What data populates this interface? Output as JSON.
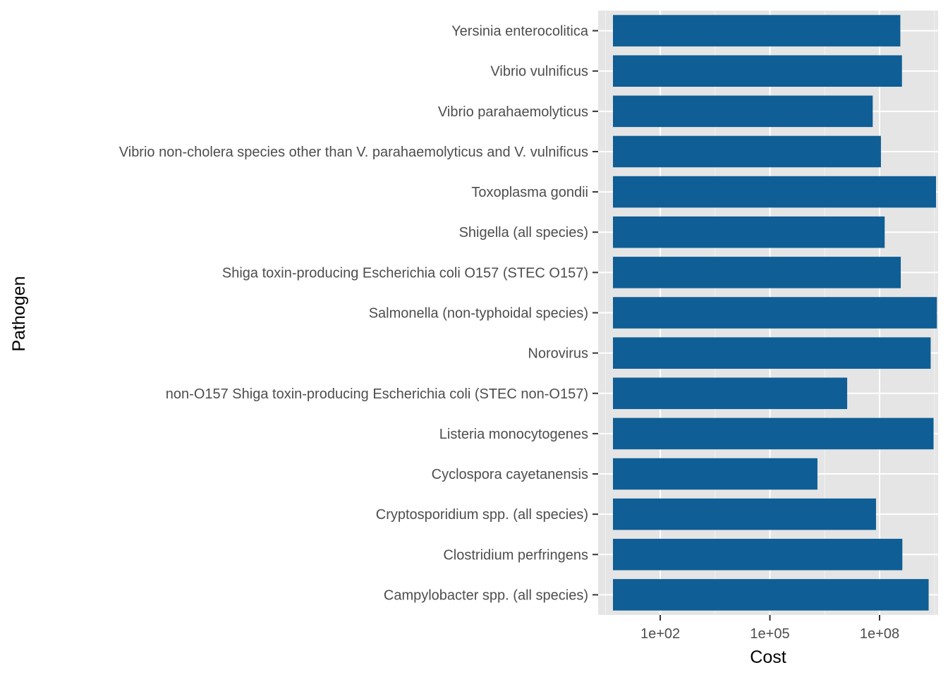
{
  "chart_data": {
    "type": "bar",
    "orientation": "horizontal",
    "xlabel": "Cost",
    "ylabel": "Pathogen",
    "x_scale": "log10",
    "xlim": [
      2,
      4000000000
    ],
    "x_ticks": [
      100,
      100000,
      100000000
    ],
    "x_tick_labels": [
      "1e+02",
      "1e+05",
      "1e+08"
    ],
    "grid": true,
    "legend": "none",
    "categories": [
      "Campylobacter spp. (all species)",
      "Clostridium perfringens",
      "Cryptosporidium spp. (all species)",
      "Cyclospora cayetanensis",
      "Listeria monocytogenes",
      "non-O157 Shiga toxin-producing Escherichia coli (STEC non-O157)",
      "Norovirus",
      "Salmonella (non-typhoidal species)",
      "Shiga toxin-producing Escherichia coli O157 (STEC O157)",
      "Shigella (all species)",
      "Toxoplasma gondii",
      "Vibrio non-cholera species other than V. parahaemolyticus and V. vulnificus",
      "Vibrio parahaemolyticus",
      "Vibrio vulnificus",
      "Yersinia enterocolitica"
    ],
    "values": [
      2200000000,
      420000000,
      80000000,
      2000000,
      3000000000,
      13000000,
      2500000000,
      3700000000,
      380000000,
      138000000,
      3500000000,
      109000000,
      65000000,
      410000000,
      370000000
    ]
  },
  "colors": {
    "bar": "#0f5e95",
    "panel_background": "#e5e5e5",
    "grid_major": "#ffffff",
    "grid_minor": "#f2f2f2",
    "tick_text": "#4d4d4d",
    "title_text": "#000000"
  }
}
